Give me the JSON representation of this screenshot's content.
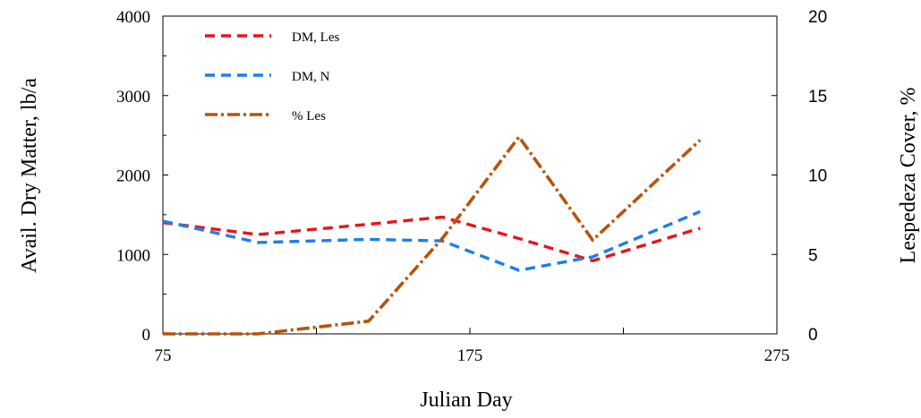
{
  "chart_data": {
    "type": "line",
    "title": "",
    "xlabel": "Julian Day",
    "ylabel": "Avail. Dry Matter, lb/a",
    "y2label": "Lespedeza Cover, %",
    "xlim": [
      75,
      275
    ],
    "ylim": [
      0,
      4000
    ],
    "y2lim": [
      0,
      20
    ],
    "x_ticks": [
      75,
      175,
      275
    ],
    "y_ticks": [
      0,
      1000,
      2000,
      3000,
      4000
    ],
    "y2_ticks": [
      0,
      5,
      10,
      15,
      20
    ],
    "legend_position": "top-left",
    "series": [
      {
        "name": "DM, Les",
        "axis": "left",
        "color": "#e8141b",
        "style": "dashed",
        "x": [
          75,
          106,
          142,
          166,
          191,
          215,
          250
        ],
        "values": [
          1400,
          1250,
          1380,
          1470,
          1200,
          920,
          1330
        ]
      },
      {
        "name": "DM, N",
        "axis": "left",
        "color": "#1e7ee8",
        "style": "dashed",
        "x": [
          75,
          106,
          142,
          166,
          191,
          215,
          250
        ],
        "values": [
          1420,
          1150,
          1190,
          1170,
          800,
          970,
          1540
        ]
      },
      {
        "name": "% Les",
        "axis": "right",
        "color": "#b5540e",
        "style": "dashdot",
        "x": [
          75,
          106,
          142,
          166,
          191,
          215,
          250
        ],
        "values": [
          0,
          0,
          0.8,
          6,
          12.4,
          5.9,
          12.2
        ]
      }
    ]
  }
}
